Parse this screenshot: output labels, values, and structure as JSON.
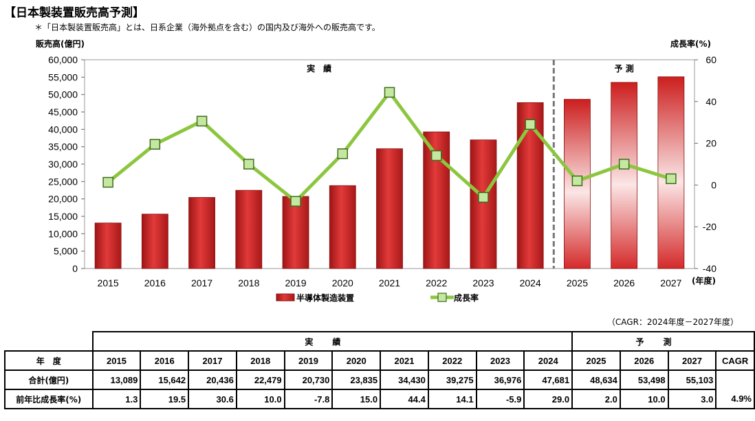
{
  "title": "【日本製装置販売高予測】",
  "note": "＊「日本製装置販売高」とは、日系企業（海外拠点を含む）の国内及び海外への販売高です。",
  "cagr_note": "（CAGR：2024年度－2027年度）",
  "chart_data": {
    "type": "bar",
    "categories": [
      "2015",
      "2016",
      "2017",
      "2018",
      "2019",
      "2020",
      "2021",
      "2022",
      "2023",
      "2024",
      "2025",
      "2026",
      "2027"
    ],
    "series": [
      {
        "name": "半導体製造装置",
        "type": "bar",
        "axis": "left",
        "values": [
          13089,
          15642,
          20436,
          22479,
          20730,
          23835,
          34430,
          39275,
          36976,
          47681,
          48634,
          53498,
          55103
        ]
      },
      {
        "name": "成長率",
        "type": "line",
        "axis": "right",
        "values": [
          1.3,
          19.5,
          30.6,
          10.0,
          -7.8,
          15.0,
          44.4,
          14.1,
          -5.9,
          29.0,
          2.0,
          10.0,
          3.0
        ]
      }
    ],
    "ylabel": "販売高(億円)",
    "y2label": "成長率(%)",
    "xlabel": "(年度)",
    "ylim": [
      0,
      60000
    ],
    "y2lim": [
      -40,
      60
    ],
    "yticks": [
      0,
      5000,
      10000,
      15000,
      20000,
      25000,
      30000,
      35000,
      40000,
      45000,
      50000,
      55000,
      60000
    ],
    "y2ticks": [
      -40,
      -20,
      0,
      20,
      40,
      60
    ],
    "forecast_start": "2025",
    "section_actual": "実　績",
    "section_forecast": "予 測",
    "bar_color": "#d42a2a",
    "line_color": "#8cc63f",
    "legend_position": "bottom"
  },
  "table": {
    "section_actual": "実績",
    "section_forecast": "予測",
    "header_label": "年　度",
    "cagr_header": "CAGR",
    "years": [
      "2015",
      "2016",
      "2017",
      "2018",
      "2019",
      "2020",
      "2021",
      "2022",
      "2023",
      "2024",
      "2025",
      "2026",
      "2027"
    ],
    "rows": [
      {
        "label": "合計(億円)",
        "values": [
          "13,089",
          "15,642",
          "20,436",
          "22,479",
          "20,730",
          "23,835",
          "34,430",
          "39,275",
          "36,976",
          "47,681",
          "48,634",
          "53,498",
          "55,103"
        ],
        "cagr": ""
      },
      {
        "label": "前年比成長率(%)",
        "values": [
          "1.3",
          "19.5",
          "30.6",
          "10.0",
          "-7.8",
          "15.0",
          "44.4",
          "14.1",
          "-5.9",
          "29.0",
          "2.0",
          "10.0",
          "3.0"
        ],
        "cagr": "4.9%"
      }
    ]
  }
}
